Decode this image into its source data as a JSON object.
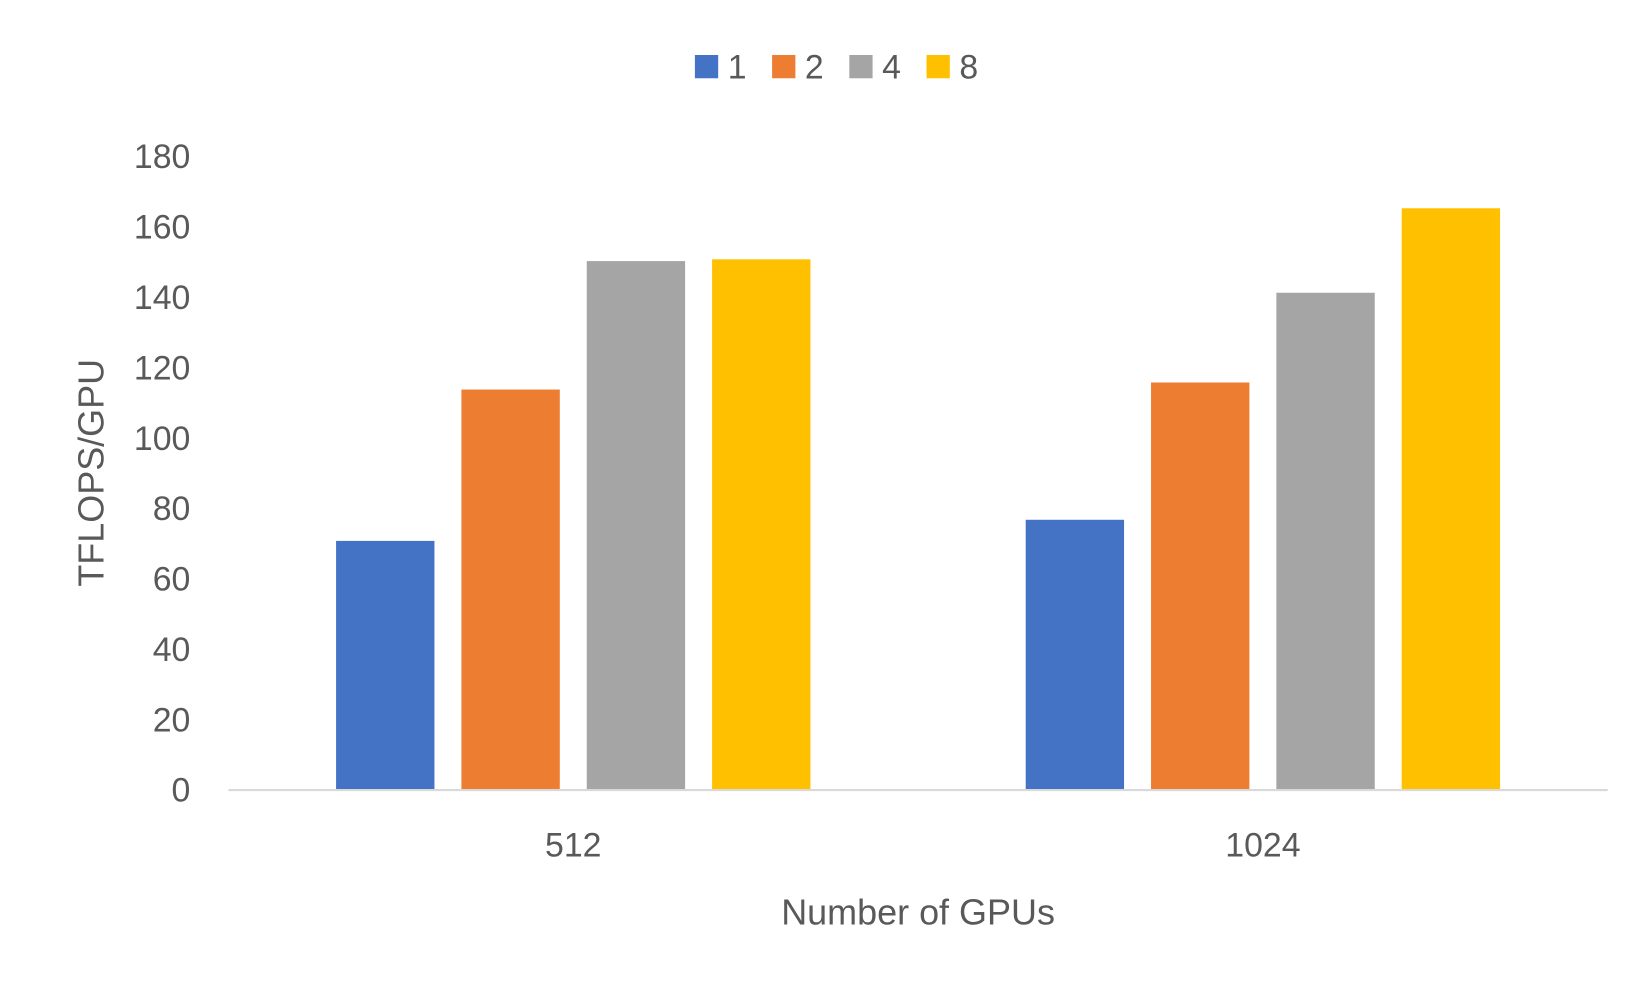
{
  "chart_data": {
    "type": "bar",
    "title": "",
    "xlabel": "Number of GPUs",
    "ylabel": "TFLOPS/GPU",
    "categories": [
      "512",
      "1024"
    ],
    "series": [
      {
        "name": "1",
        "color": "#4472C4",
        "values": [
          70.5,
          76.5
        ]
      },
      {
        "name": "2",
        "color": "#ED7D31",
        "values": [
          113.5,
          115.5
        ]
      },
      {
        "name": "4",
        "color": "#A5A5A5",
        "values": [
          150,
          141
        ]
      },
      {
        "name": "8",
        "color": "#FFC000",
        "values": [
          150.5,
          165
        ]
      }
    ],
    "ylim": [
      0,
      180
    ],
    "yticks": [
      "0",
      "20",
      "40",
      "60",
      "80",
      "100",
      "120",
      "140",
      "160",
      "180"
    ],
    "grid": false,
    "legend_position": "top-center"
  }
}
